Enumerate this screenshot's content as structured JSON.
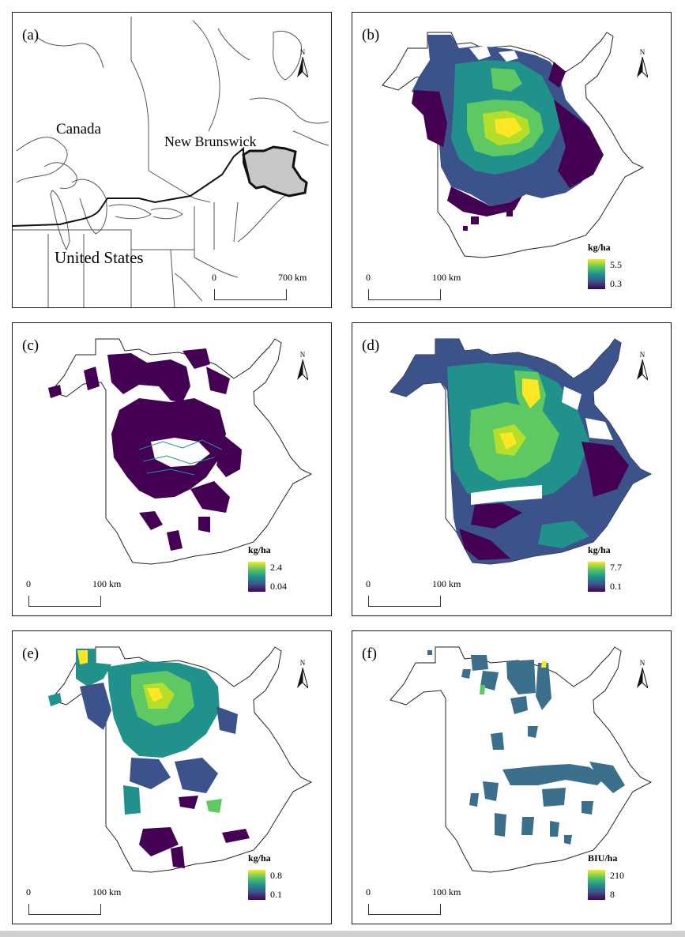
{
  "panels": [
    {
      "id": "a",
      "label": "(a)",
      "scale_left": "0",
      "scale_right": "700 km",
      "north": "N",
      "places": {
        "canada": "Canada",
        "new_brunswick": "New Brunswick",
        "united_states": "United States"
      }
    },
    {
      "id": "b",
      "label": "(b)",
      "scale_left": "0",
      "scale_right": "100 km",
      "north": "N",
      "legend": {
        "title": "kg/ha",
        "max": "5.5",
        "min": "0.3"
      }
    },
    {
      "id": "c",
      "label": "(c)",
      "scale_left": "0",
      "scale_right": "100 km",
      "north": "N",
      "legend": {
        "title": "kg/ha",
        "max": "2.4",
        "min": "0.04"
      }
    },
    {
      "id": "d",
      "label": "(d)",
      "scale_left": "0",
      "scale_right": "100 km",
      "north": "N",
      "legend": {
        "title": "kg/ha",
        "max": "7.7",
        "min": "0.1"
      }
    },
    {
      "id": "e",
      "label": "(e)",
      "scale_left": "0",
      "scale_right": "100 km",
      "north": "N",
      "legend": {
        "title": "kg/ha",
        "max": "0.8",
        "min": "0.1"
      }
    },
    {
      "id": "f",
      "label": "(f)",
      "scale_left": "0",
      "scale_right": "100 km",
      "north": "N",
      "legend": {
        "title": "BIU/ha",
        "max": "210",
        "min": "8"
      }
    }
  ],
  "colors": {
    "viridis": [
      "#440154",
      "#3b528b",
      "#21918c",
      "#5ec962",
      "#fde725"
    ],
    "province_fill": "#c8c8c8",
    "outline": "#222222"
  }
}
